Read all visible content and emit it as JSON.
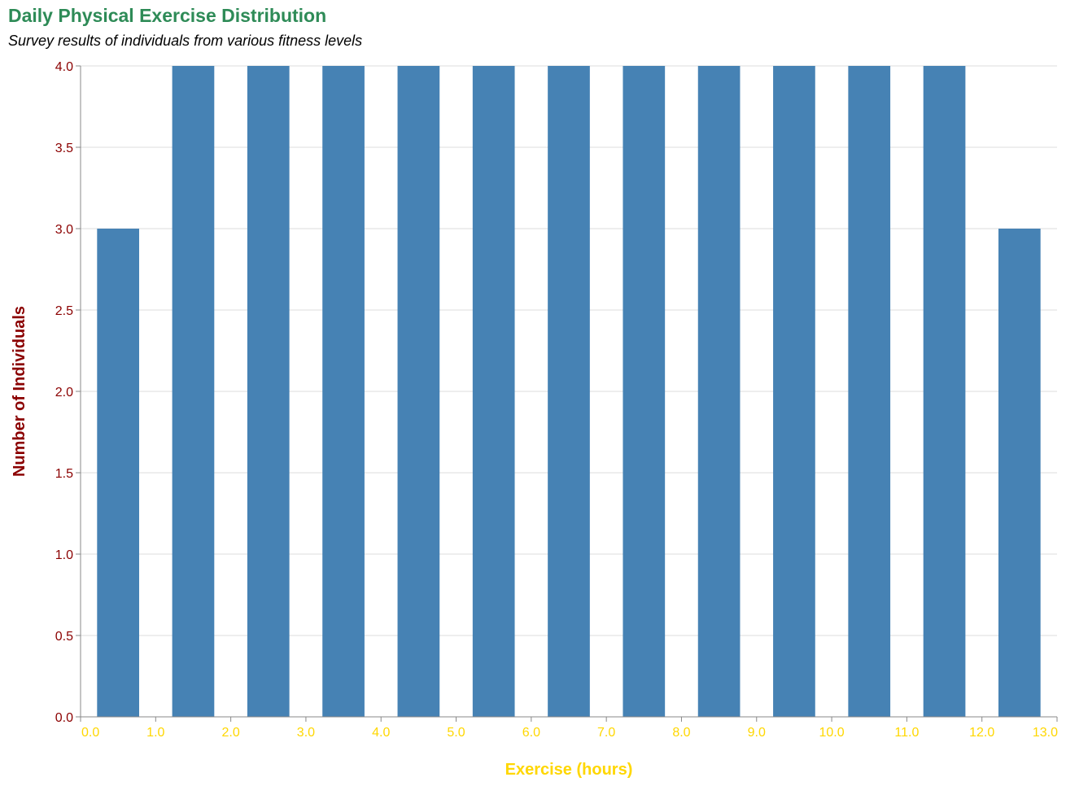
{
  "chart_data": {
    "type": "bar",
    "title": "Daily Physical Exercise Distribution",
    "subtitle": "Survey results of individuals from various fitness levels",
    "xlabel": "Exercise (hours)",
    "ylabel": "Number of Individuals",
    "xlim": [
      0,
      13
    ],
    "ylim": [
      0,
      4
    ],
    "x_ticks": [
      "0.0",
      "1.0",
      "2.0",
      "3.0",
      "4.0",
      "5.0",
      "6.0",
      "7.0",
      "8.0",
      "9.0",
      "10.0",
      "11.0",
      "12.0",
      "13.0"
    ],
    "y_ticks": [
      "0.0",
      "0.5",
      "1.0",
      "1.5",
      "2.0",
      "2.5",
      "3.0",
      "3.5",
      "4.0"
    ],
    "bins": [
      {
        "start": 0,
        "end": 1,
        "value": 3
      },
      {
        "start": 1,
        "end": 2,
        "value": 4
      },
      {
        "start": 2,
        "end": 3,
        "value": 4
      },
      {
        "start": 3,
        "end": 4,
        "value": 4
      },
      {
        "start": 4,
        "end": 5,
        "value": 4
      },
      {
        "start": 5,
        "end": 6,
        "value": 4
      },
      {
        "start": 6,
        "end": 7,
        "value": 4
      },
      {
        "start": 7,
        "end": 8,
        "value": 4
      },
      {
        "start": 8,
        "end": 9,
        "value": 4
      },
      {
        "start": 9,
        "end": 10,
        "value": 4
      },
      {
        "start": 10,
        "end": 11,
        "value": 4
      },
      {
        "start": 11,
        "end": 12,
        "value": 4
      },
      {
        "start": 12,
        "end": 13,
        "value": 3
      }
    ],
    "grid": true,
    "colors": {
      "bar": "#4682b4",
      "title": "#2e8b57",
      "y_axis_text": "#8b0000",
      "x_axis_text": "#ffd700",
      "grid": "#dddddd",
      "axis": "#888888"
    }
  }
}
